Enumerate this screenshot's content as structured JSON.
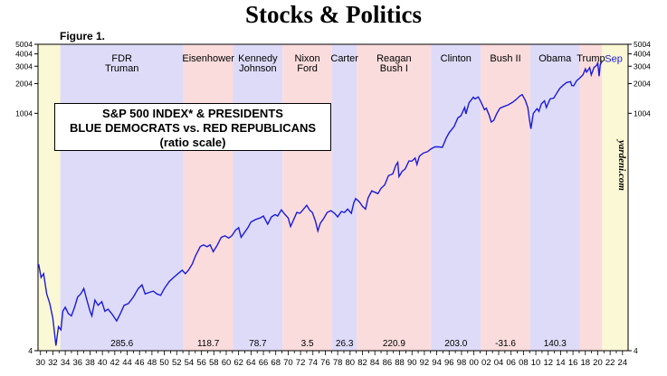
{
  "page_title": "Stocks & Politics",
  "figure_label": "Figure 1.",
  "legend": {
    "line1": "S&P 500 INDEX* & PRESIDENTS",
    "line2": "BLUE DEMOCRATS vs. RED REPUBLICANS",
    "line3": "(ratio scale)"
  },
  "watermark": "yardeni.com",
  "chart_data": {
    "type": "line",
    "scale": "log",
    "ylim": [
      4,
      5004
    ],
    "xlim": [
      1929.6,
      2024.9
    ],
    "y_ticks": [
      4,
      1004,
      2004,
      3004,
      4004,
      5004
    ],
    "x_tick_labels": [
      "30",
      "32",
      "34",
      "36",
      "38",
      "40",
      "42",
      "44",
      "46",
      "48",
      "50",
      "52",
      "54",
      "56",
      "58",
      "60",
      "62",
      "64",
      "66",
      "68",
      "70",
      "72",
      "74",
      "76",
      "78",
      "80",
      "82",
      "84",
      "86",
      "88",
      "90",
      "92",
      "94",
      "96",
      "98",
      "00",
      "02",
      "04",
      "06",
      "08",
      "10",
      "12",
      "14",
      "16",
      "18",
      "20",
      "22",
      "24"
    ],
    "series_color": "#1b1bdc",
    "series_end_label": "Sep",
    "party_colors": {
      "D": "#dedbf8",
      "R": "#fadcdc",
      "pre": "#fbf8d6",
      "post": "#fbf8d6"
    },
    "regimes": [
      {
        "party": "pre",
        "start": 1929.6,
        "end": 1933.2,
        "label": [],
        "change": ""
      },
      {
        "party": "D",
        "start": 1933.2,
        "end": 1953.1,
        "label": [
          "FDR",
          "Truman"
        ],
        "change": "285.6"
      },
      {
        "party": "R",
        "start": 1953.1,
        "end": 1961.1,
        "label": [
          "Eisenhower"
        ],
        "change": "118.7"
      },
      {
        "party": "D",
        "start": 1961.1,
        "end": 1969.1,
        "label": [
          "Kennedy",
          "Johnson"
        ],
        "change": "78.7"
      },
      {
        "party": "R",
        "start": 1969.1,
        "end": 1977.1,
        "label": [
          "Nixon",
          "Ford"
        ],
        "change": "3.5"
      },
      {
        "party": "D",
        "start": 1977.1,
        "end": 1981.1,
        "label": [
          "Carter"
        ],
        "change": "26.3"
      },
      {
        "party": "R",
        "start": 1981.1,
        "end": 1993.1,
        "label": [
          "Reagan",
          "Bush I"
        ],
        "change": "220.9"
      },
      {
        "party": "D",
        "start": 1993.1,
        "end": 2001.1,
        "label": [
          "Clinton"
        ],
        "change": "203.0"
      },
      {
        "party": "R",
        "start": 2001.1,
        "end": 2009.1,
        "label": [
          "Bush II"
        ],
        "change": "-31.6"
      },
      {
        "party": "D",
        "start": 2009.1,
        "end": 2017.1,
        "label": [
          "Obama"
        ],
        "change": "140.3"
      },
      {
        "party": "R",
        "start": 2017.1,
        "end": 2020.7,
        "label": [
          "Trump"
        ],
        "change": ""
      },
      {
        "party": "post",
        "start": 2020.7,
        "end": 2024.9,
        "label": [],
        "change": ""
      }
    ],
    "series": [
      {
        "name": "S&P 500",
        "points": [
          [
            1929.7,
            30
          ],
          [
            1930.1,
            22
          ],
          [
            1930.5,
            24
          ],
          [
            1931.0,
            15
          ],
          [
            1931.5,
            12
          ],
          [
            1932.0,
            8.5
          ],
          [
            1932.5,
            4.5
          ],
          [
            1932.9,
            7
          ],
          [
            1933.3,
            6.5
          ],
          [
            1933.6,
            10
          ],
          [
            1934.0,
            11
          ],
          [
            1934.5,
            9.5
          ],
          [
            1935.0,
            9
          ],
          [
            1935.5,
            11
          ],
          [
            1936.0,
            14
          ],
          [
            1936.5,
            15
          ],
          [
            1937.0,
            17
          ],
          [
            1937.5,
            13
          ],
          [
            1938.0,
            10
          ],
          [
            1938.3,
            9
          ],
          [
            1938.8,
            13
          ],
          [
            1939.3,
            11.5
          ],
          [
            1939.9,
            12.5
          ],
          [
            1940.4,
            10
          ],
          [
            1940.9,
            10.5
          ],
          [
            1941.5,
            9.5
          ],
          [
            1942.3,
            8
          ],
          [
            1942.9,
            9.5
          ],
          [
            1943.5,
            11.5
          ],
          [
            1944.2,
            12
          ],
          [
            1945.0,
            14
          ],
          [
            1945.8,
            17
          ],
          [
            1946.4,
            18.5
          ],
          [
            1946.9,
            15
          ],
          [
            1947.5,
            15.5
          ],
          [
            1948.2,
            16
          ],
          [
            1948.8,
            15
          ],
          [
            1949.4,
            14.5
          ],
          [
            1950.0,
            17
          ],
          [
            1950.8,
            20
          ],
          [
            1951.5,
            22
          ],
          [
            1952.2,
            24
          ],
          [
            1952.9,
            26
          ],
          [
            1953.4,
            24
          ],
          [
            1953.9,
            26
          ],
          [
            1954.5,
            30
          ],
          [
            1955.0,
            36
          ],
          [
            1955.8,
            45
          ],
          [
            1956.3,
            47
          ],
          [
            1956.9,
            45
          ],
          [
            1957.4,
            47
          ],
          [
            1957.9,
            40
          ],
          [
            1958.5,
            46
          ],
          [
            1959.2,
            56
          ],
          [
            1959.8,
            58
          ],
          [
            1960.4,
            55
          ],
          [
            1960.9,
            58
          ],
          [
            1961.5,
            66
          ],
          [
            1962.0,
            70
          ],
          [
            1962.4,
            56
          ],
          [
            1962.9,
            62
          ],
          [
            1963.5,
            70
          ],
          [
            1964.0,
            80
          ],
          [
            1964.8,
            85
          ],
          [
            1965.5,
            88
          ],
          [
            1966.0,
            92
          ],
          [
            1966.7,
            76
          ],
          [
            1967.3,
            90
          ],
          [
            1967.9,
            95
          ],
          [
            1968.3,
            92
          ],
          [
            1968.9,
            106
          ],
          [
            1969.5,
            95
          ],
          [
            1970.0,
            88
          ],
          [
            1970.4,
            72
          ],
          [
            1970.9,
            85
          ],
          [
            1971.4,
            100
          ],
          [
            1971.9,
            98
          ],
          [
            1972.5,
            108
          ],
          [
            1973.0,
            118
          ],
          [
            1973.5,
            105
          ],
          [
            1973.9,
            100
          ],
          [
            1974.4,
            82
          ],
          [
            1974.8,
            65
          ],
          [
            1975.2,
            78
          ],
          [
            1975.7,
            86
          ],
          [
            1976.3,
            100
          ],
          [
            1976.9,
            104
          ],
          [
            1977.5,
            98
          ],
          [
            1978.0,
            90
          ],
          [
            1978.6,
            102
          ],
          [
            1979.1,
            100
          ],
          [
            1979.6,
            108
          ],
          [
            1980.2,
            98
          ],
          [
            1980.6,
            125
          ],
          [
            1980.9,
            138
          ],
          [
            1981.5,
            128
          ],
          [
            1982.0,
            115
          ],
          [
            1982.5,
            108
          ],
          [
            1982.9,
            140
          ],
          [
            1983.5,
            165
          ],
          [
            1984.0,
            160
          ],
          [
            1984.5,
            155
          ],
          [
            1985.0,
            175
          ],
          [
            1985.6,
            190
          ],
          [
            1986.2,
            235
          ],
          [
            1986.9,
            245
          ],
          [
            1987.4,
            300
          ],
          [
            1987.7,
            320
          ],
          [
            1987.9,
            230
          ],
          [
            1988.4,
            260
          ],
          [
            1988.9,
            275
          ],
          [
            1989.5,
            330
          ],
          [
            1990.0,
            330
          ],
          [
            1990.5,
            355
          ],
          [
            1990.8,
            305
          ],
          [
            1991.2,
            370
          ],
          [
            1991.9,
            400
          ],
          [
            1992.5,
            410
          ],
          [
            1993.1,
            440
          ],
          [
            1993.7,
            460
          ],
          [
            1994.3,
            460
          ],
          [
            1994.9,
            455
          ],
          [
            1995.5,
            560
          ],
          [
            1996.0,
            640
          ],
          [
            1996.8,
            740
          ],
          [
            1997.4,
            900
          ],
          [
            1997.9,
            950
          ],
          [
            1998.5,
            1150
          ],
          [
            1998.7,
            990
          ],
          [
            1999.2,
            1280
          ],
          [
            1999.9,
            1460
          ],
          [
            2000.2,
            1400
          ],
          [
            2000.7,
            1470
          ],
          [
            2001.1,
            1320
          ],
          [
            2001.7,
            1090
          ],
          [
            2002.0,
            1130
          ],
          [
            2002.5,
            950
          ],
          [
            2002.8,
            820
          ],
          [
            2003.2,
            850
          ],
          [
            2003.7,
            1000
          ],
          [
            2004.2,
            1130
          ],
          [
            2004.9,
            1180
          ],
          [
            2005.5,
            1220
          ],
          [
            2006.2,
            1290
          ],
          [
            2006.8,
            1380
          ],
          [
            2007.4,
            1500
          ],
          [
            2007.8,
            1550
          ],
          [
            2008.3,
            1360
          ],
          [
            2008.7,
            1150
          ],
          [
            2009.0,
            850
          ],
          [
            2009.2,
            700
          ],
          [
            2009.6,
            1000
          ],
          [
            2010.2,
            1120
          ],
          [
            2010.5,
            1050
          ],
          [
            2010.9,
            1250
          ],
          [
            2011.4,
            1340
          ],
          [
            2011.7,
            1150
          ],
          [
            2012.3,
            1400
          ],
          [
            2012.9,
            1430
          ],
          [
            2013.5,
            1650
          ],
          [
            2013.9,
            1800
          ],
          [
            2014.5,
            1950
          ],
          [
            2015.0,
            2060
          ],
          [
            2015.6,
            2100
          ],
          [
            2015.8,
            1920
          ],
          [
            2016.1,
            1900
          ],
          [
            2016.6,
            2150
          ],
          [
            2017.1,
            2280
          ],
          [
            2017.6,
            2450
          ],
          [
            2018.0,
            2820
          ],
          [
            2018.2,
            2620
          ],
          [
            2018.7,
            2900
          ],
          [
            2018.95,
            2450
          ],
          [
            2019.4,
            2920
          ],
          [
            2019.8,
            3050
          ],
          [
            2020.0,
            3240
          ],
          [
            2020.22,
            2380
          ],
          [
            2020.4,
            3100
          ],
          [
            2020.7,
            3380
          ]
        ]
      }
    ]
  }
}
